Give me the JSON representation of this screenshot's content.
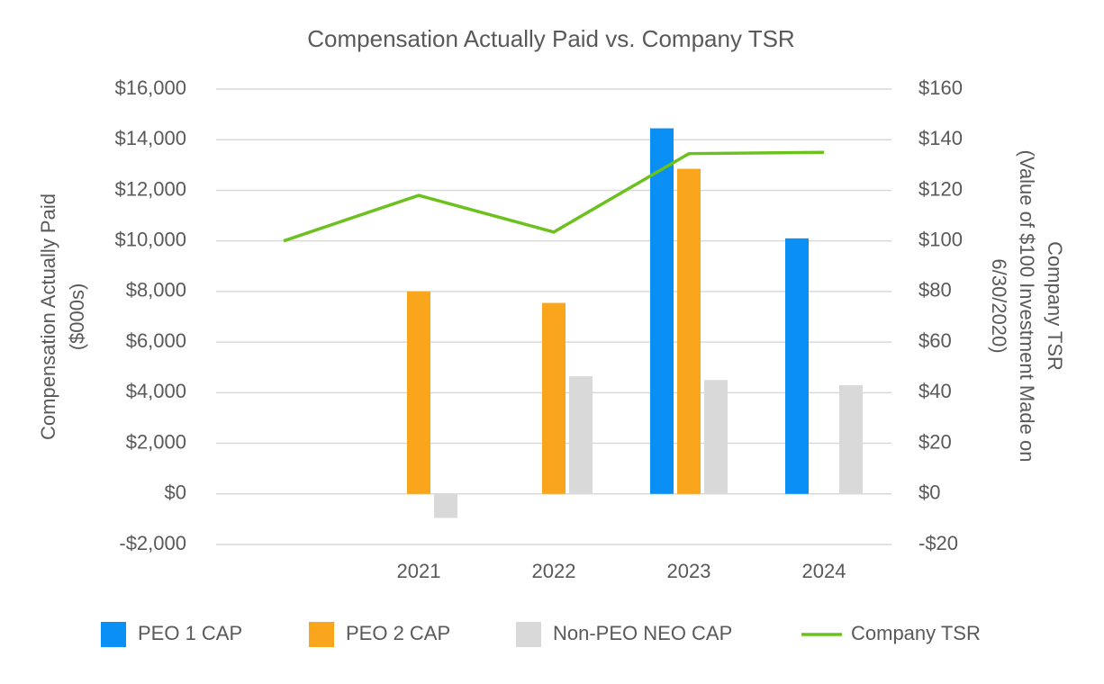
{
  "chart_data": {
    "type": "bar",
    "title": "Compensation Actually Paid vs. Company TSR",
    "y_label": [
      "Compensation Actually Paid",
      "($000s)"
    ],
    "y2_label": [
      "Company TSR",
      "(Value of $100 Investment Made on",
      "6/30/2020)"
    ],
    "categories": [
      null,
      "2021",
      "2022",
      "2023",
      "2024"
    ],
    "series": [
      {
        "name": "PEO 1 CAP",
        "color": "#0a8ff5",
        "values": [
          null,
          null,
          null,
          14450,
          10100
        ]
      },
      {
        "name": "PEO 2 CAP",
        "color": "#f9a61c",
        "values": [
          null,
          8000,
          7550,
          12850,
          null
        ]
      },
      {
        "name": "Non-PEO NEO CAP",
        "color": "#d9d9d9",
        "values": [
          null,
          -950,
          4650,
          4500,
          4300
        ]
      },
      {
        "name": "Company TSR",
        "color": "#6cc11f",
        "type": "line",
        "axis": "y2",
        "values": [
          100,
          118,
          103.5,
          134.5,
          135
        ]
      }
    ],
    "ylim": [
      -2000,
      16000
    ],
    "yticks": [
      {
        "value": -2000,
        "label": "-$2,000"
      },
      {
        "value": 0,
        "label": "$0"
      },
      {
        "value": 2000,
        "label": "$2,000"
      },
      {
        "value": 4000,
        "label": "$4,000"
      },
      {
        "value": 6000,
        "label": "$6,000"
      },
      {
        "value": 8000,
        "label": "$8,000"
      },
      {
        "value": 10000,
        "label": "$10,000"
      },
      {
        "value": 12000,
        "label": "$12,000"
      },
      {
        "value": 14000,
        "label": "$14,000"
      },
      {
        "value": 16000,
        "label": "$16,000"
      }
    ],
    "y2lim": [
      -20,
      160
    ],
    "y2ticks": [
      {
        "value": -20,
        "label": "-$20"
      },
      {
        "value": 0,
        "label": "$0"
      },
      {
        "value": 20,
        "label": "$20"
      },
      {
        "value": 40,
        "label": "$40"
      },
      {
        "value": 60,
        "label": "$60"
      },
      {
        "value": 80,
        "label": "$80"
      },
      {
        "value": 100,
        "label": "$100"
      },
      {
        "value": 120,
        "label": "$120"
      },
      {
        "value": 140,
        "label": "$140"
      },
      {
        "value": 160,
        "label": "$160"
      }
    ],
    "grid": true,
    "legend": "bottom"
  }
}
